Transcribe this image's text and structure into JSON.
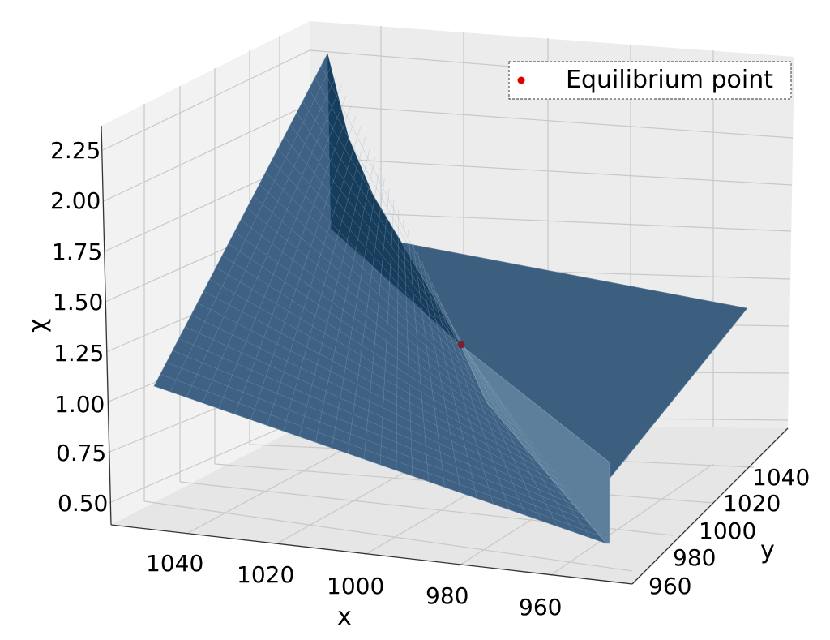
{
  "chart_data": {
    "type": "surface3d",
    "title": "",
    "xlabel": "x",
    "ylabel": "y",
    "zlabel": "χ",
    "x_ticks": [
      "1040",
      "1020",
      "1000",
      "980",
      "960"
    ],
    "y_ticks": [
      "1040",
      "1020",
      "1000",
      "980",
      "960"
    ],
    "z_ticks": [
      "2.25",
      "2.00",
      "1.75",
      "1.50",
      "1.25",
      "1.00",
      "0.75",
      "0.50"
    ],
    "xlim": [
      950,
      1050
    ],
    "ylim": [
      950,
      1050
    ],
    "zlim": [
      0.4,
      2.3
    ],
    "grid": true,
    "surface_color": "#1f4e79",
    "surface_corners": [
      {
        "x": 1050,
        "y": 950,
        "z": 1.1
      },
      {
        "x": 1050,
        "y": 1050,
        "z": 2.2
      },
      {
        "x": 950,
        "y": 1050,
        "z": 1.3
      },
      {
        "x": 950,
        "y": 950,
        "z": 0.6
      }
    ],
    "equilibrium_point": {
      "x": 1000,
      "y": 1000,
      "z": 1.0
    },
    "legend": {
      "position": "top-right",
      "entries": [
        {
          "label": "Equilibrium point",
          "color": "#e00000",
          "marker": "circle"
        }
      ]
    }
  }
}
